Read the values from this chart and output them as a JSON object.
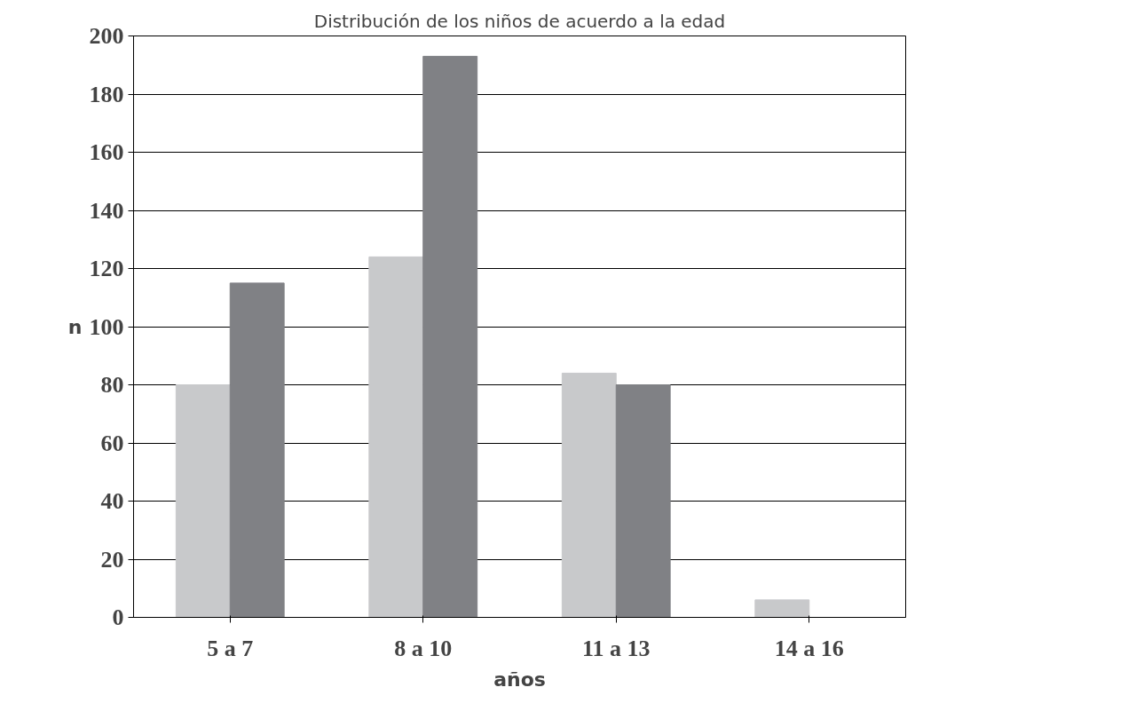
{
  "chart_data": {
    "type": "bar",
    "title": "Distribución de los niños de acuerdo a la edad",
    "xlabel": "años",
    "ylabel": "n",
    "categories": [
      "5 a 7",
      "8 a 10",
      "11 a 13",
      "14 a 16"
    ],
    "series": [
      {
        "color": "#c8c9cb",
        "values": [
          80,
          124,
          84,
          6
        ]
      },
      {
        "color": "#808185",
        "values": [
          115,
          193,
          80,
          0
        ]
      }
    ],
    "ylim": [
      0,
      200
    ],
    "yticks": [
      0,
      20,
      40,
      60,
      80,
      100,
      120,
      140,
      160,
      180,
      200
    ],
    "grid": "y"
  }
}
